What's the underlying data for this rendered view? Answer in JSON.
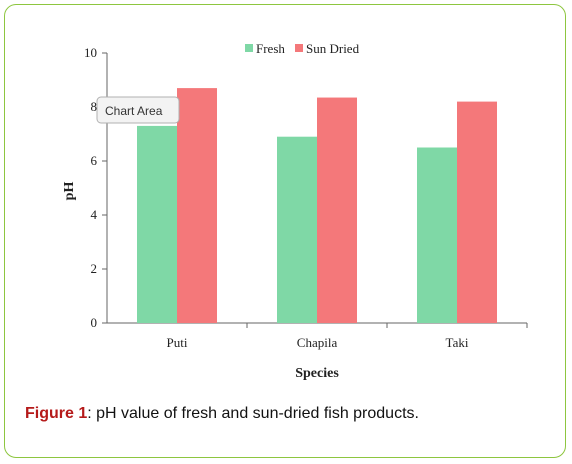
{
  "chart_data": {
    "type": "bar",
    "categories": [
      "Puti",
      "Chapila",
      "Taki"
    ],
    "series": [
      {
        "name": "Fresh",
        "values": [
          7.3,
          6.9,
          6.5
        ],
        "color": "#7fd8a6"
      },
      {
        "name": "Sun Dried",
        "values": [
          8.7,
          8.35,
          8.2
        ],
        "color": "#f4787a"
      }
    ],
    "xlabel": "Species",
    "ylabel": "pH",
    "ylim": [
      0,
      10
    ],
    "yticks": [
      "0",
      "2",
      "4",
      "6",
      "8",
      "10"
    ],
    "grid": false,
    "legend_position": "top-right"
  },
  "tooltip": {
    "label": "Chart Area"
  },
  "caption": {
    "label": "Figure 1",
    "text": ": pH value of fresh and sun-dried fish products."
  },
  "colors": {
    "frame_border": "#8dc63f",
    "caption_label": "#b51a1a"
  }
}
